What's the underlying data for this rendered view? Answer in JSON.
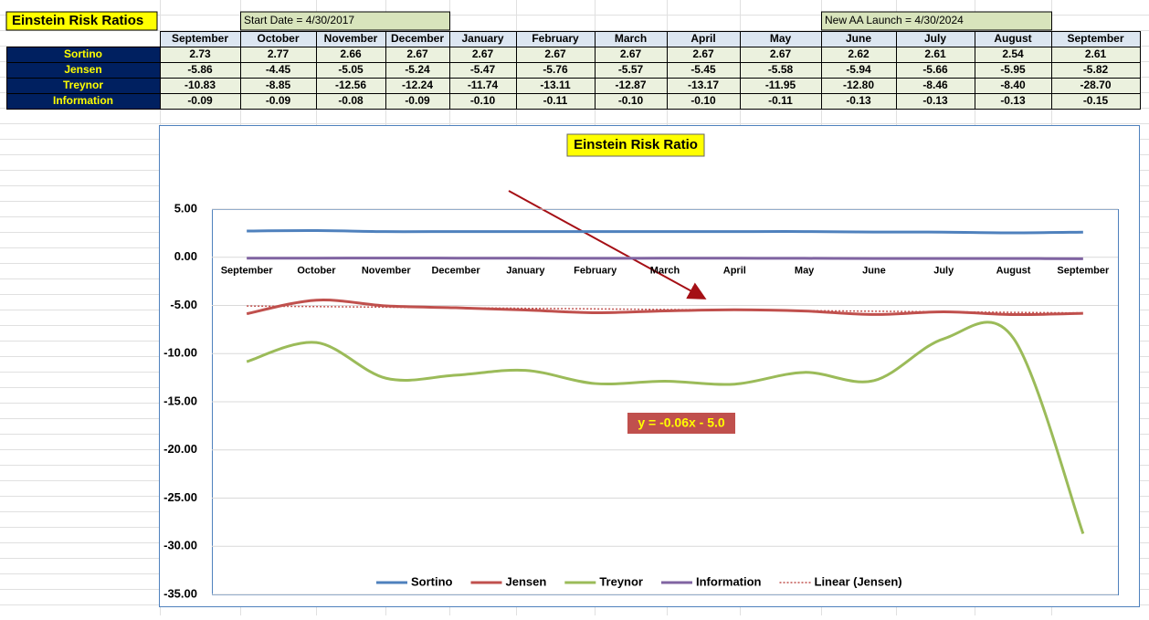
{
  "table": {
    "title": "Einstein Risk Ratios",
    "notes": [
      "Start Date = 4/30/2017",
      "New AA Launch = 4/30/2024"
    ],
    "columns": [
      "September",
      "October",
      "November",
      "December",
      "January",
      "February",
      "March",
      "April",
      "May",
      "June",
      "July",
      "August",
      "September"
    ],
    "rows": [
      {
        "label": "Sortino",
        "values": [
          "2.73",
          "2.77",
          "2.66",
          "2.67",
          "2.67",
          "2.67",
          "2.67",
          "2.67",
          "2.67",
          "2.62",
          "2.61",
          "2.54",
          "2.61"
        ]
      },
      {
        "label": "Jensen",
        "values": [
          "-5.86",
          "-4.45",
          "-5.05",
          "-5.24",
          "-5.47",
          "-5.76",
          "-5.57",
          "-5.45",
          "-5.58",
          "-5.94",
          "-5.66",
          "-5.95",
          "-5.82"
        ]
      },
      {
        "label": "Treynor",
        "values": [
          "-10.83",
          "-8.85",
          "-12.56",
          "-12.24",
          "-11.74",
          "-13.11",
          "-12.87",
          "-13.17",
          "-11.95",
          "-12.80",
          "-8.46",
          "-8.40",
          "-28.70"
        ]
      },
      {
        "label": "Information",
        "values": [
          "-0.09",
          "-0.09",
          "-0.08",
          "-0.09",
          "-0.10",
          "-0.11",
          "-0.10",
          "-0.10",
          "-0.11",
          "-0.13",
          "-0.13",
          "-0.13",
          "-0.15"
        ]
      }
    ]
  },
  "chart_data": {
    "type": "line",
    "title": "Einstein Risk Ratio",
    "categories": [
      "September",
      "October",
      "November",
      "December",
      "January",
      "February",
      "March",
      "April",
      "May",
      "June",
      "July",
      "August",
      "September"
    ],
    "series": [
      {
        "name": "Sortino",
        "color": "#4f81bd",
        "values": [
          2.73,
          2.77,
          2.66,
          2.67,
          2.67,
          2.67,
          2.67,
          2.67,
          2.67,
          2.62,
          2.61,
          2.54,
          2.61
        ]
      },
      {
        "name": "Jensen",
        "color": "#c0504d",
        "values": [
          -5.86,
          -4.45,
          -5.05,
          -5.24,
          -5.47,
          -5.76,
          -5.57,
          -5.45,
          -5.58,
          -5.94,
          -5.66,
          -5.95,
          -5.82
        ]
      },
      {
        "name": "Treynor",
        "color": "#9bbb59",
        "values": [
          -10.83,
          -8.85,
          -12.56,
          -12.24,
          -11.74,
          -13.11,
          -12.87,
          -13.17,
          -11.95,
          -12.8,
          -8.46,
          -8.4,
          -28.7
        ]
      },
      {
        "name": "Information",
        "color": "#8064a2",
        "values": [
          -0.09,
          -0.09,
          -0.08,
          -0.09,
          -0.1,
          -0.11,
          -0.1,
          -0.1,
          -0.11,
          -0.13,
          -0.13,
          -0.13,
          -0.15
        ]
      }
    ],
    "trendline": {
      "name": "Linear (Jensen)",
      "color": "#c0504d",
      "slope": -0.06,
      "intercept": -5.0,
      "label": "y = -0.06x - 5.0"
    },
    "ylim": [
      -35,
      5
    ],
    "yticks": [
      {
        "value": -35,
        "label": "-35.00"
      },
      {
        "value": -30,
        "label": "-30.00"
      },
      {
        "value": -25,
        "label": "-25.00"
      },
      {
        "value": -20,
        "label": "-20.00"
      },
      {
        "value": -15,
        "label": "-15.00"
      },
      {
        "value": -10,
        "label": "-10.00"
      },
      {
        "value": -5,
        "label": "-5.00"
      },
      {
        "value": 0,
        "label": "0.00"
      },
      {
        "value": 5,
        "label": "5.00"
      }
    ],
    "grid": true,
    "legend": "bottom",
    "smooth": true
  }
}
